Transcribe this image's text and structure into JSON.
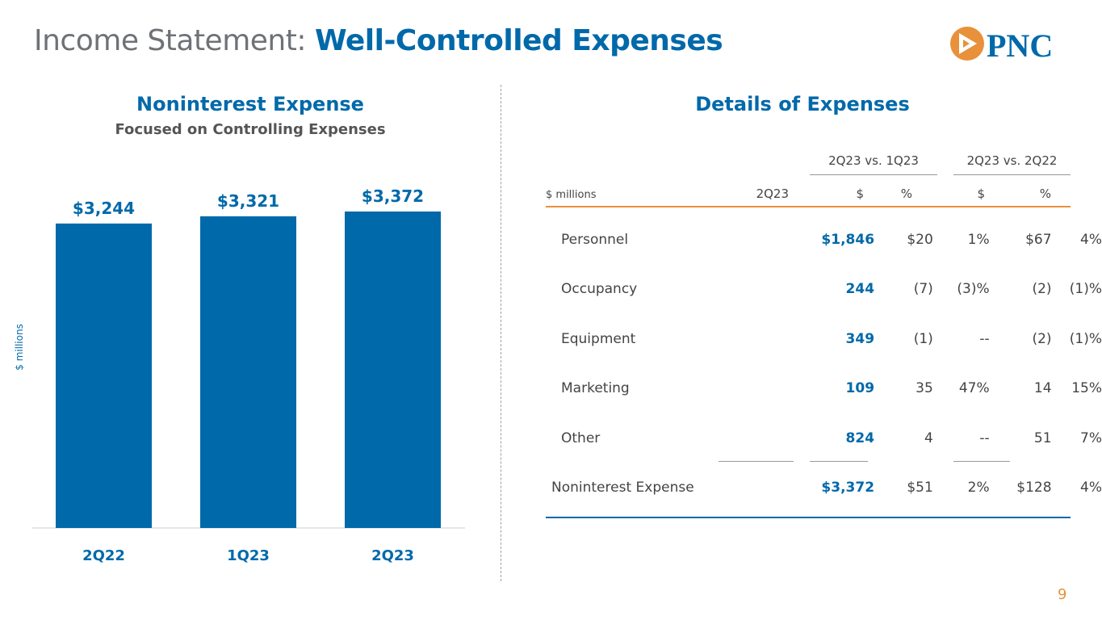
{
  "header": {
    "title_light": "Income Statement:",
    "title_bold": "Well-Controlled Expenses"
  },
  "logo": {
    "text": "PNC",
    "brand_blue": "#0069aa",
    "brand_orange": "#e8913a"
  },
  "chart_data": {
    "type": "bar",
    "title": "Noninterest Expense",
    "subtitle": "Focused on Controlling Expenses",
    "categories": [
      "2Q22",
      "1Q23",
      "2Q23"
    ],
    "values": [
      3244,
      3321,
      3372
    ],
    "data_labels": [
      "$3,244",
      "$3,321",
      "$3,372"
    ],
    "ylabel": "$ millions",
    "ylim": [
      0,
      3372
    ],
    "grid": false,
    "bar_color": "#0069aa"
  },
  "table": {
    "title": "Details of Expenses",
    "group_headers": [
      "2Q23 vs. 1Q23",
      "2Q23 vs. 2Q22"
    ],
    "units_label": "$ millions",
    "columns": [
      "2Q23",
      "$",
      "%",
      "$",
      "%"
    ],
    "rows": [
      {
        "label": "Personnel",
        "q": "$1,846",
        "d1": "$20",
        "p1": "1%",
        "d2": "$67",
        "p2": "4%"
      },
      {
        "label": "Occupancy",
        "q": "244",
        "d1": "(7)",
        "p1": "(3)%",
        "d2": "(2)",
        "p2": "(1)%"
      },
      {
        "label": "Equipment",
        "q": "349",
        "d1": "(1)",
        "p1": "--",
        "d2": "(2)",
        "p2": "(1)%"
      },
      {
        "label": "Marketing",
        "q": "109",
        "d1": "35",
        "p1": "47%",
        "d2": "14",
        "p2": "15%"
      },
      {
        "label": "Other",
        "q": "824",
        "d1": "4",
        "p1": "--",
        "d2": "51",
        "p2": "7%"
      },
      {
        "label": "Noninterest Expense",
        "q": "$3,372",
        "d1": "$51",
        "p1": "2%",
        "d2": "$128",
        "p2": "4%"
      }
    ]
  },
  "page_number": "9"
}
